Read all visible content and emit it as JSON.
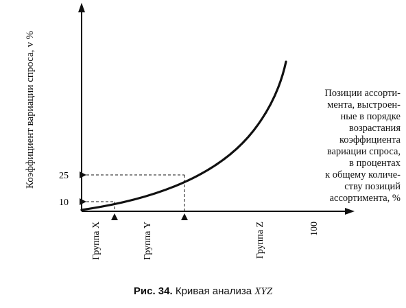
{
  "chart_data": {
    "type": "line",
    "ylabel": "Коэффициент вариации спроса, v %",
    "xlabel_lines": [
      "Позиции ассорти-",
      "мента, выстроен-",
      "ные в порядке",
      "возрастания",
      "коэффициента",
      "вариации спроса,",
      "в процентах",
      "к общему количе-",
      "ству позиций",
      "ассортимента, %"
    ],
    "y_ticks": [
      "10",
      "25"
    ],
    "y_tick_values": [
      10,
      25
    ],
    "x_tick": "100",
    "groups": [
      "Группа X",
      "Группа Y",
      "Группа Z"
    ],
    "boundary_markers": [
      "X/Y",
      "Y/Z"
    ],
    "curve_shape": "increasing, convex"
  },
  "caption": {
    "number": "Рис. 34.",
    "text": " Кривая анализа ",
    "emphasis": "XYZ"
  }
}
